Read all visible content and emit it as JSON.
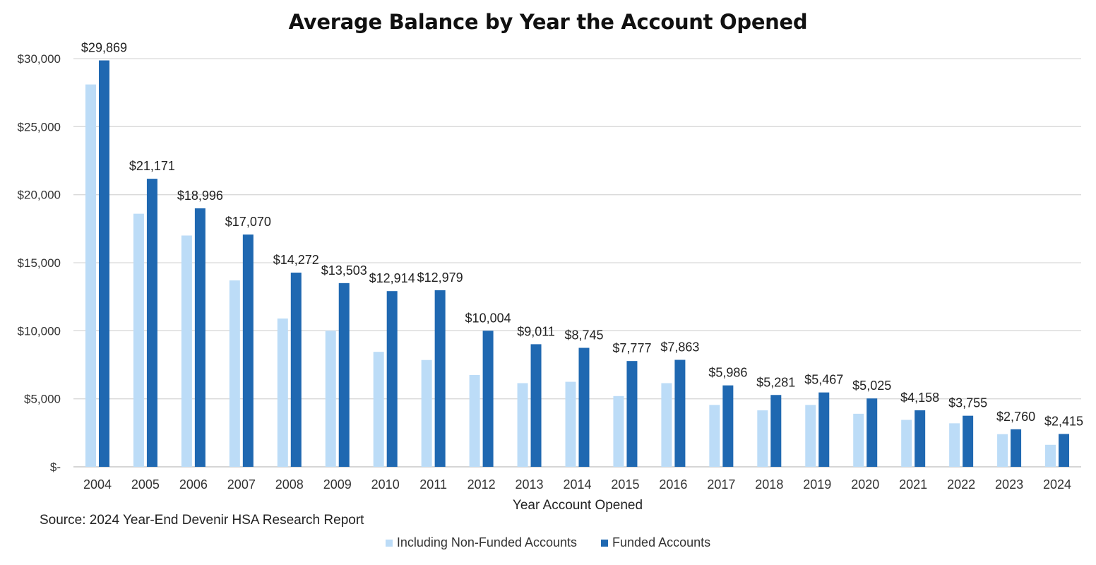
{
  "chart_data": {
    "type": "bar",
    "title": "Average Balance by Year the Account Opened",
    "xlabel": "Year Account Opened",
    "ylabel": "",
    "ylim": [
      0,
      30000
    ],
    "yticks": [
      0,
      5000,
      10000,
      15000,
      20000,
      25000,
      30000
    ],
    "ytick_labels": [
      "$-",
      "$5,000",
      "$10,000",
      "$15,000",
      "$20,000",
      "$25,000",
      "$30,000"
    ],
    "grid": true,
    "legend_position": "bottom-center",
    "categories": [
      "2004",
      "2005",
      "2006",
      "2007",
      "2008",
      "2009",
      "2010",
      "2011",
      "2012",
      "2013",
      "2014",
      "2015",
      "2016",
      "2017",
      "2018",
      "2019",
      "2020",
      "2021",
      "2022",
      "2023",
      "2024"
    ],
    "series": [
      {
        "name": "Including Non-Funded Accounts",
        "color": "#bcdcf7",
        "values": [
          28100,
          18600,
          17000,
          13700,
          10900,
          10000,
          8450,
          7850,
          6750,
          6150,
          6250,
          5200,
          6150,
          4550,
          4150,
          4550,
          3900,
          3450,
          3200,
          2400,
          1620
        ],
        "show_labels": false
      },
      {
        "name": "Funded Accounts",
        "color": "#1f68b1",
        "values": [
          29869,
          21171,
          18996,
          17070,
          14272,
          13503,
          12914,
          12979,
          10004,
          9011,
          8745,
          7777,
          7863,
          5986,
          5281,
          5467,
          5025,
          4158,
          3755,
          2760,
          2415
        ],
        "data_labels": [
          "$29,869",
          "$21,171",
          "$18,996",
          "$17,070",
          "$14,272",
          "$13,503",
          "$12,914",
          "$12,979",
          "$10,004",
          "$9,011",
          "$8,745",
          "$7,777",
          "$7,863",
          "$5,986",
          "$5,281",
          "$5,467",
          "$5,025",
          "$4,158",
          "$3,755",
          "$2,760",
          "$2,415"
        ],
        "show_labels": true
      }
    ]
  },
  "source": "Source: 2024 Year-End Devenir HSA Research Report"
}
